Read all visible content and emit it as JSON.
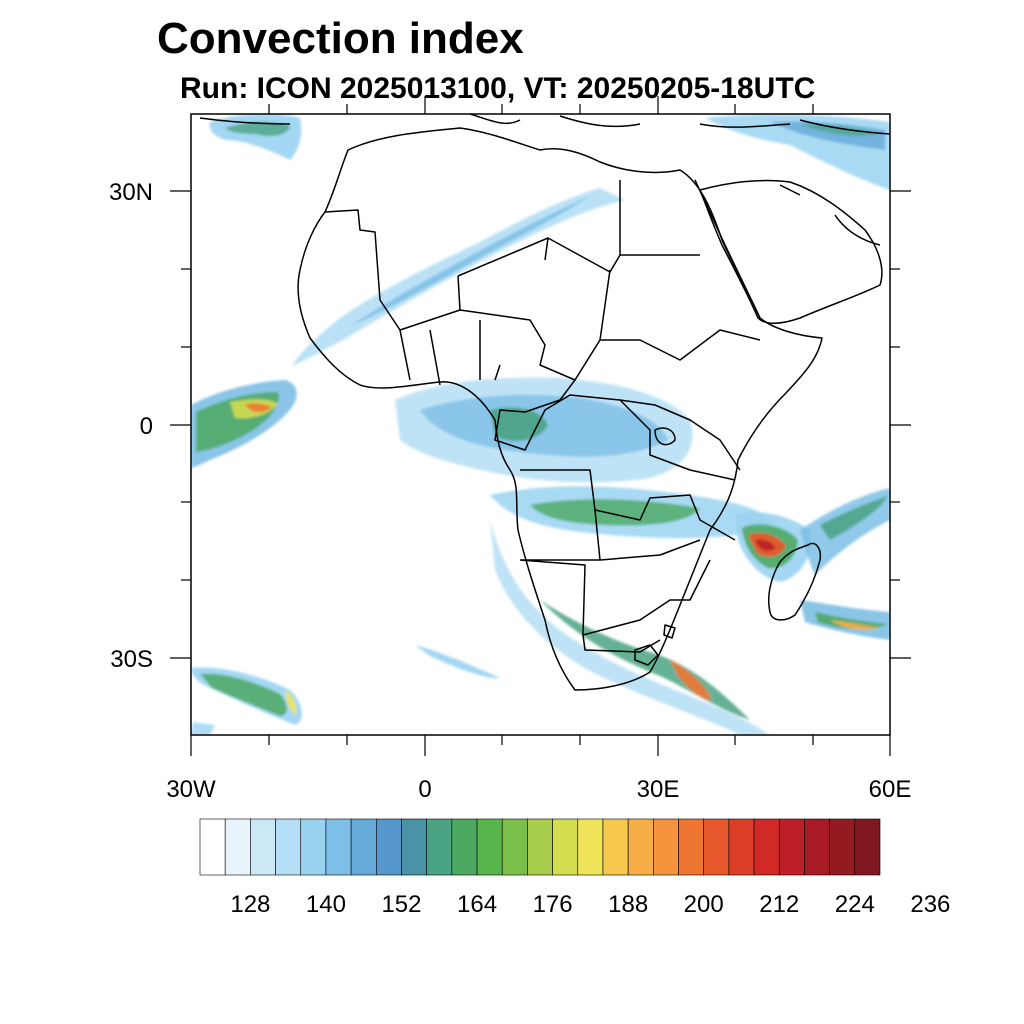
{
  "title": "Convection index",
  "subtitle": "Run: ICON 2025013100,  VT: 20250205-18UTC",
  "axes": {
    "lon_labels": [
      "30W",
      "0",
      "30E",
      "60E"
    ],
    "lat_labels": [
      "30N",
      "0",
      "30S"
    ]
  },
  "colorbar": {
    "labels": [
      "128",
      "140",
      "152",
      "164",
      "176",
      "188",
      "200",
      "212",
      "224",
      "236"
    ],
    "colors": [
      "#ffffff",
      "#e8f4fb",
      "#cce8f7",
      "#b4def5",
      "#9ad3f2",
      "#7dbfe6",
      "#66abd9",
      "#5596cc",
      "#4a93a7",
      "#4aa383",
      "#4ca962",
      "#58b54c",
      "#7cc04c",
      "#a8ce4c",
      "#d3dd50",
      "#f0e45a",
      "#f7c94f",
      "#f6ae46",
      "#f5943d",
      "#ef7533",
      "#e6582b",
      "#dc3e27",
      "#d12a26",
      "#bd2026",
      "#a81b24",
      "#941a22",
      "#7f181f"
    ]
  }
}
